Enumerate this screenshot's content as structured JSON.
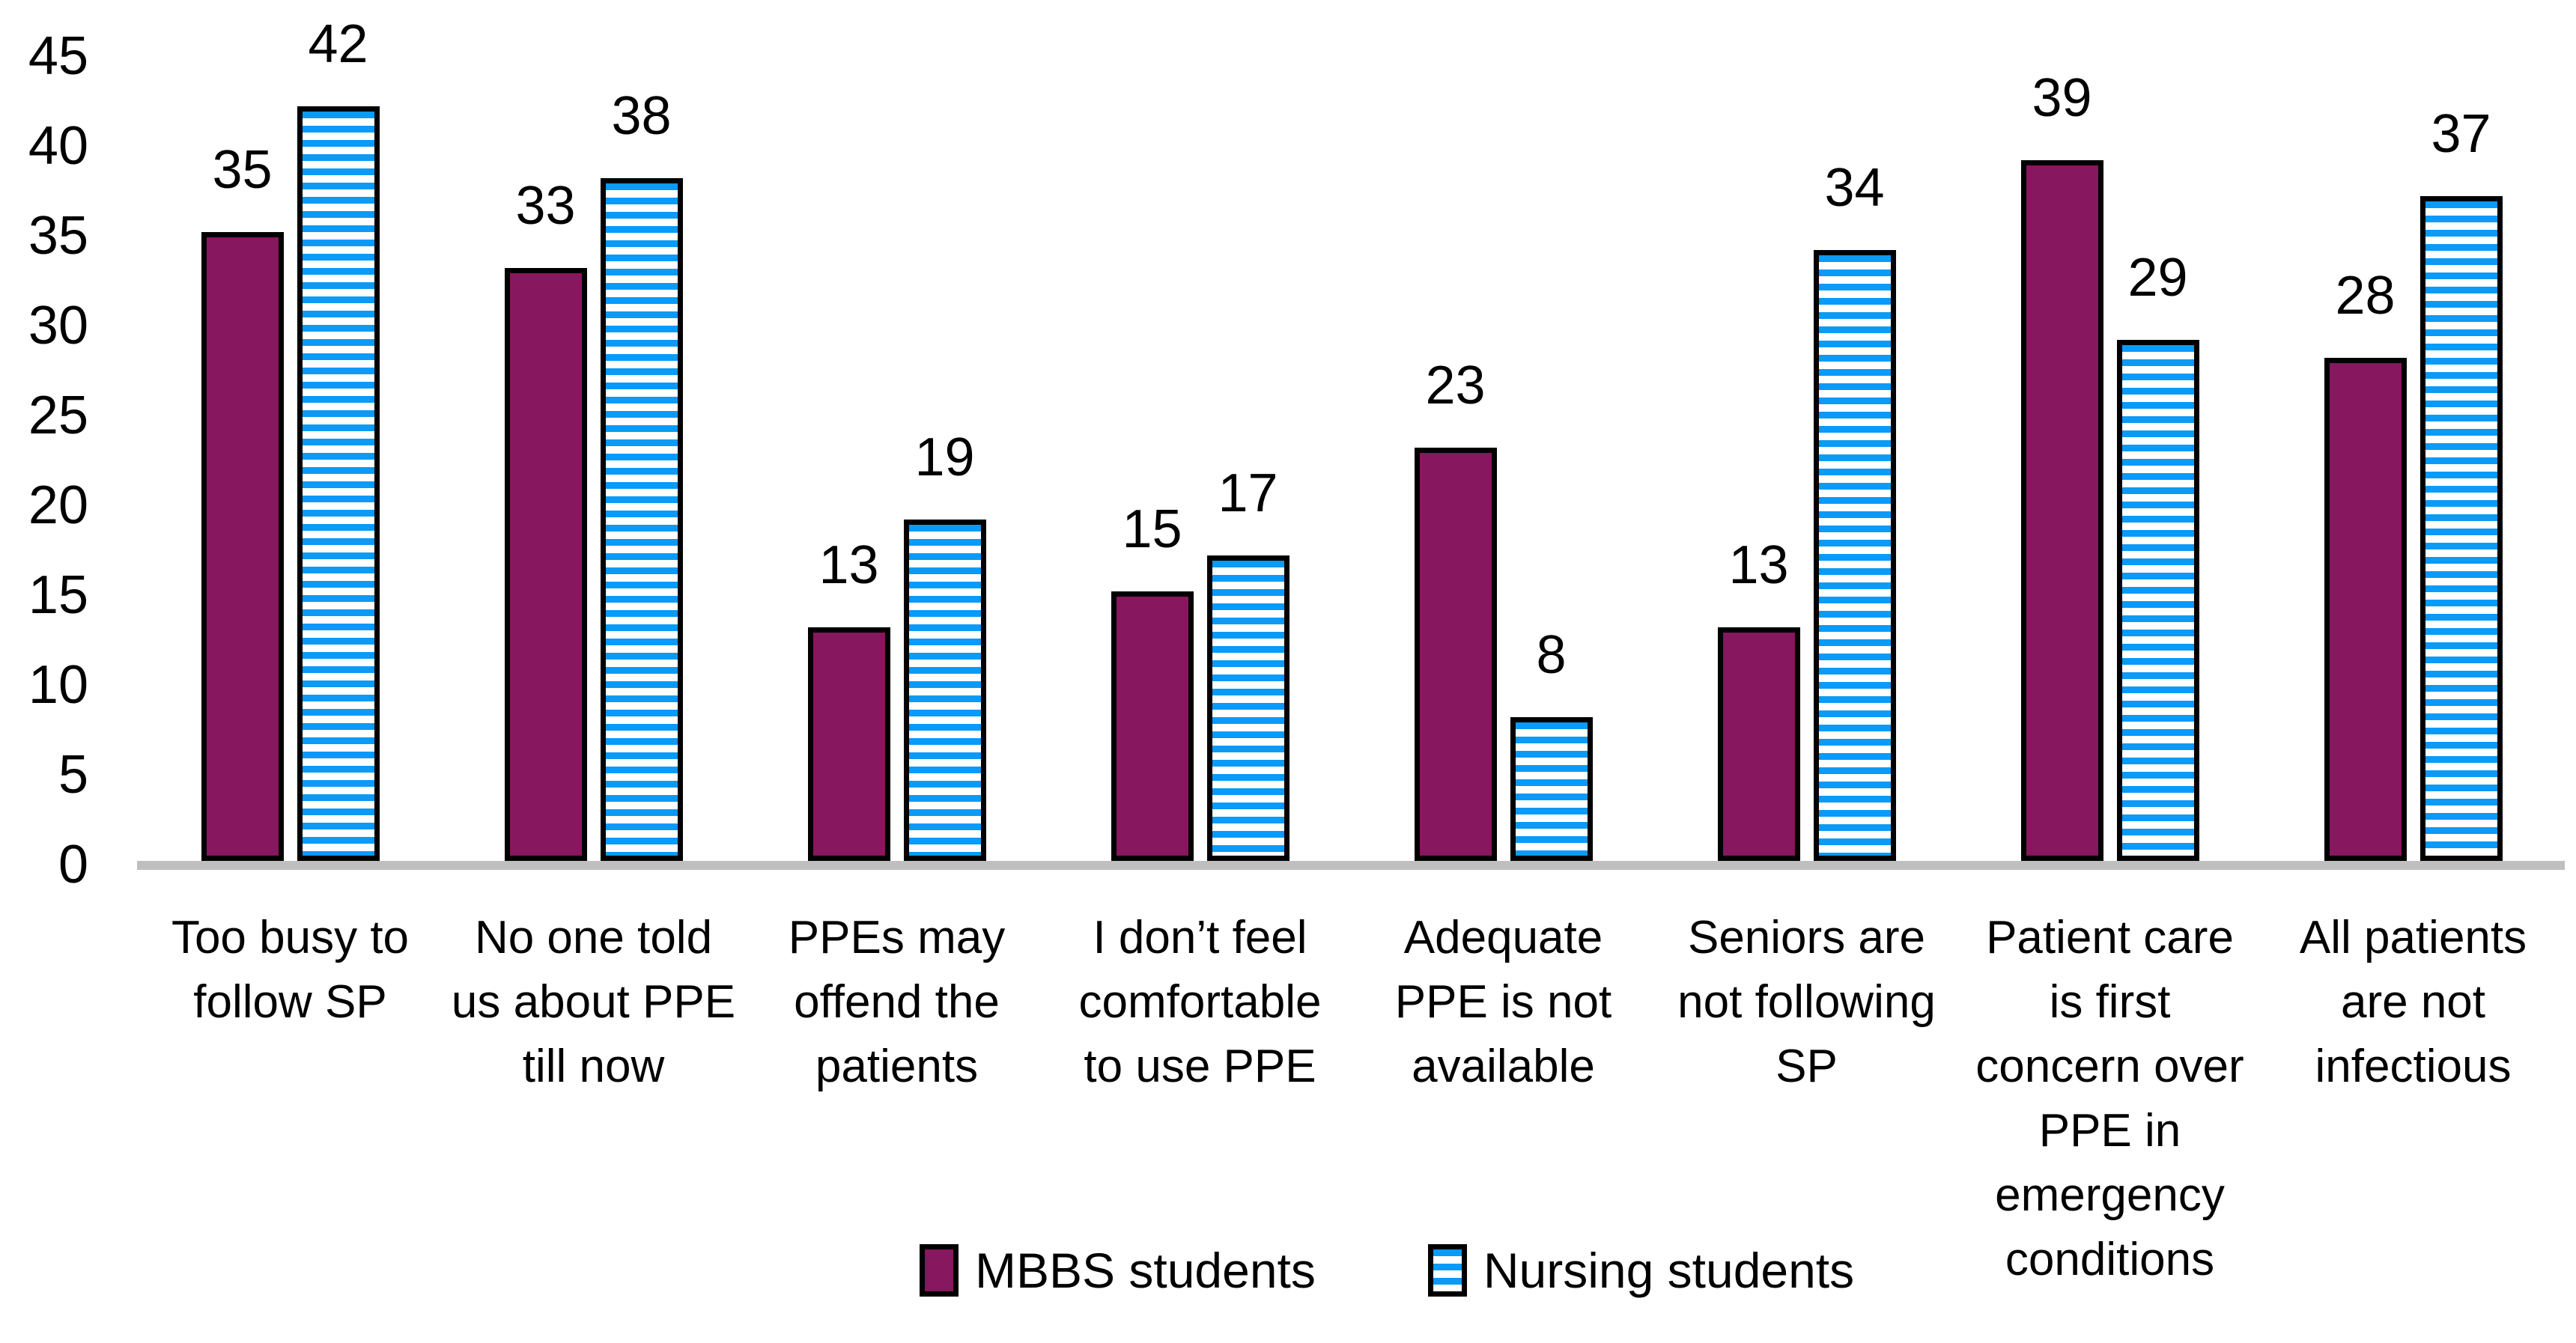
{
  "chart_data": {
    "type": "bar",
    "title": "",
    "xlabel": "",
    "ylabel": "",
    "ylim": [
      0,
      45
    ],
    "y_ticks": [
      45,
      40,
      35,
      30,
      25,
      20,
      15,
      10,
      5,
      0
    ],
    "grid": false,
    "legend_position": "bottom",
    "value_labels_shown": true,
    "baseline_color": "#BFBFBF",
    "categories": [
      "Too busy to follow SP",
      "No one told us about PPE till now",
      "PPEs may offend the patients",
      "I don’t feel comfortable to use PPE",
      "Adequate PPE is not available",
      "Seniors are not following SP",
      "Patient care is first concern over PPE in emergency conditions",
      "All patients are not infectious"
    ],
    "categories_display": [
      "Too busy to\nfollow SP",
      "No one told\nus about PPE\ntill now",
      "PPEs may\noffend the\npatients",
      "I don’t feel\ncomfortable\nto use PPE",
      "Adequate\nPPE is not\navailable",
      "Seniors are\nnot following\nSP",
      "Patient care\nis first\nconcern over\nPPE in\nemergency\nconditions",
      "All patients\nare not\ninfectious"
    ],
    "series": [
      {
        "name": "MBBS students",
        "pattern": "solid",
        "color": "#87175E",
        "values": [
          35,
          33,
          13,
          15,
          23,
          13,
          39,
          28
        ]
      },
      {
        "name": "Nursing students",
        "pattern": "horizontal-stripes",
        "color": "#0A9AF7",
        "values": [
          42,
          38,
          19,
          17,
          8,
          34,
          29,
          37
        ]
      }
    ]
  }
}
